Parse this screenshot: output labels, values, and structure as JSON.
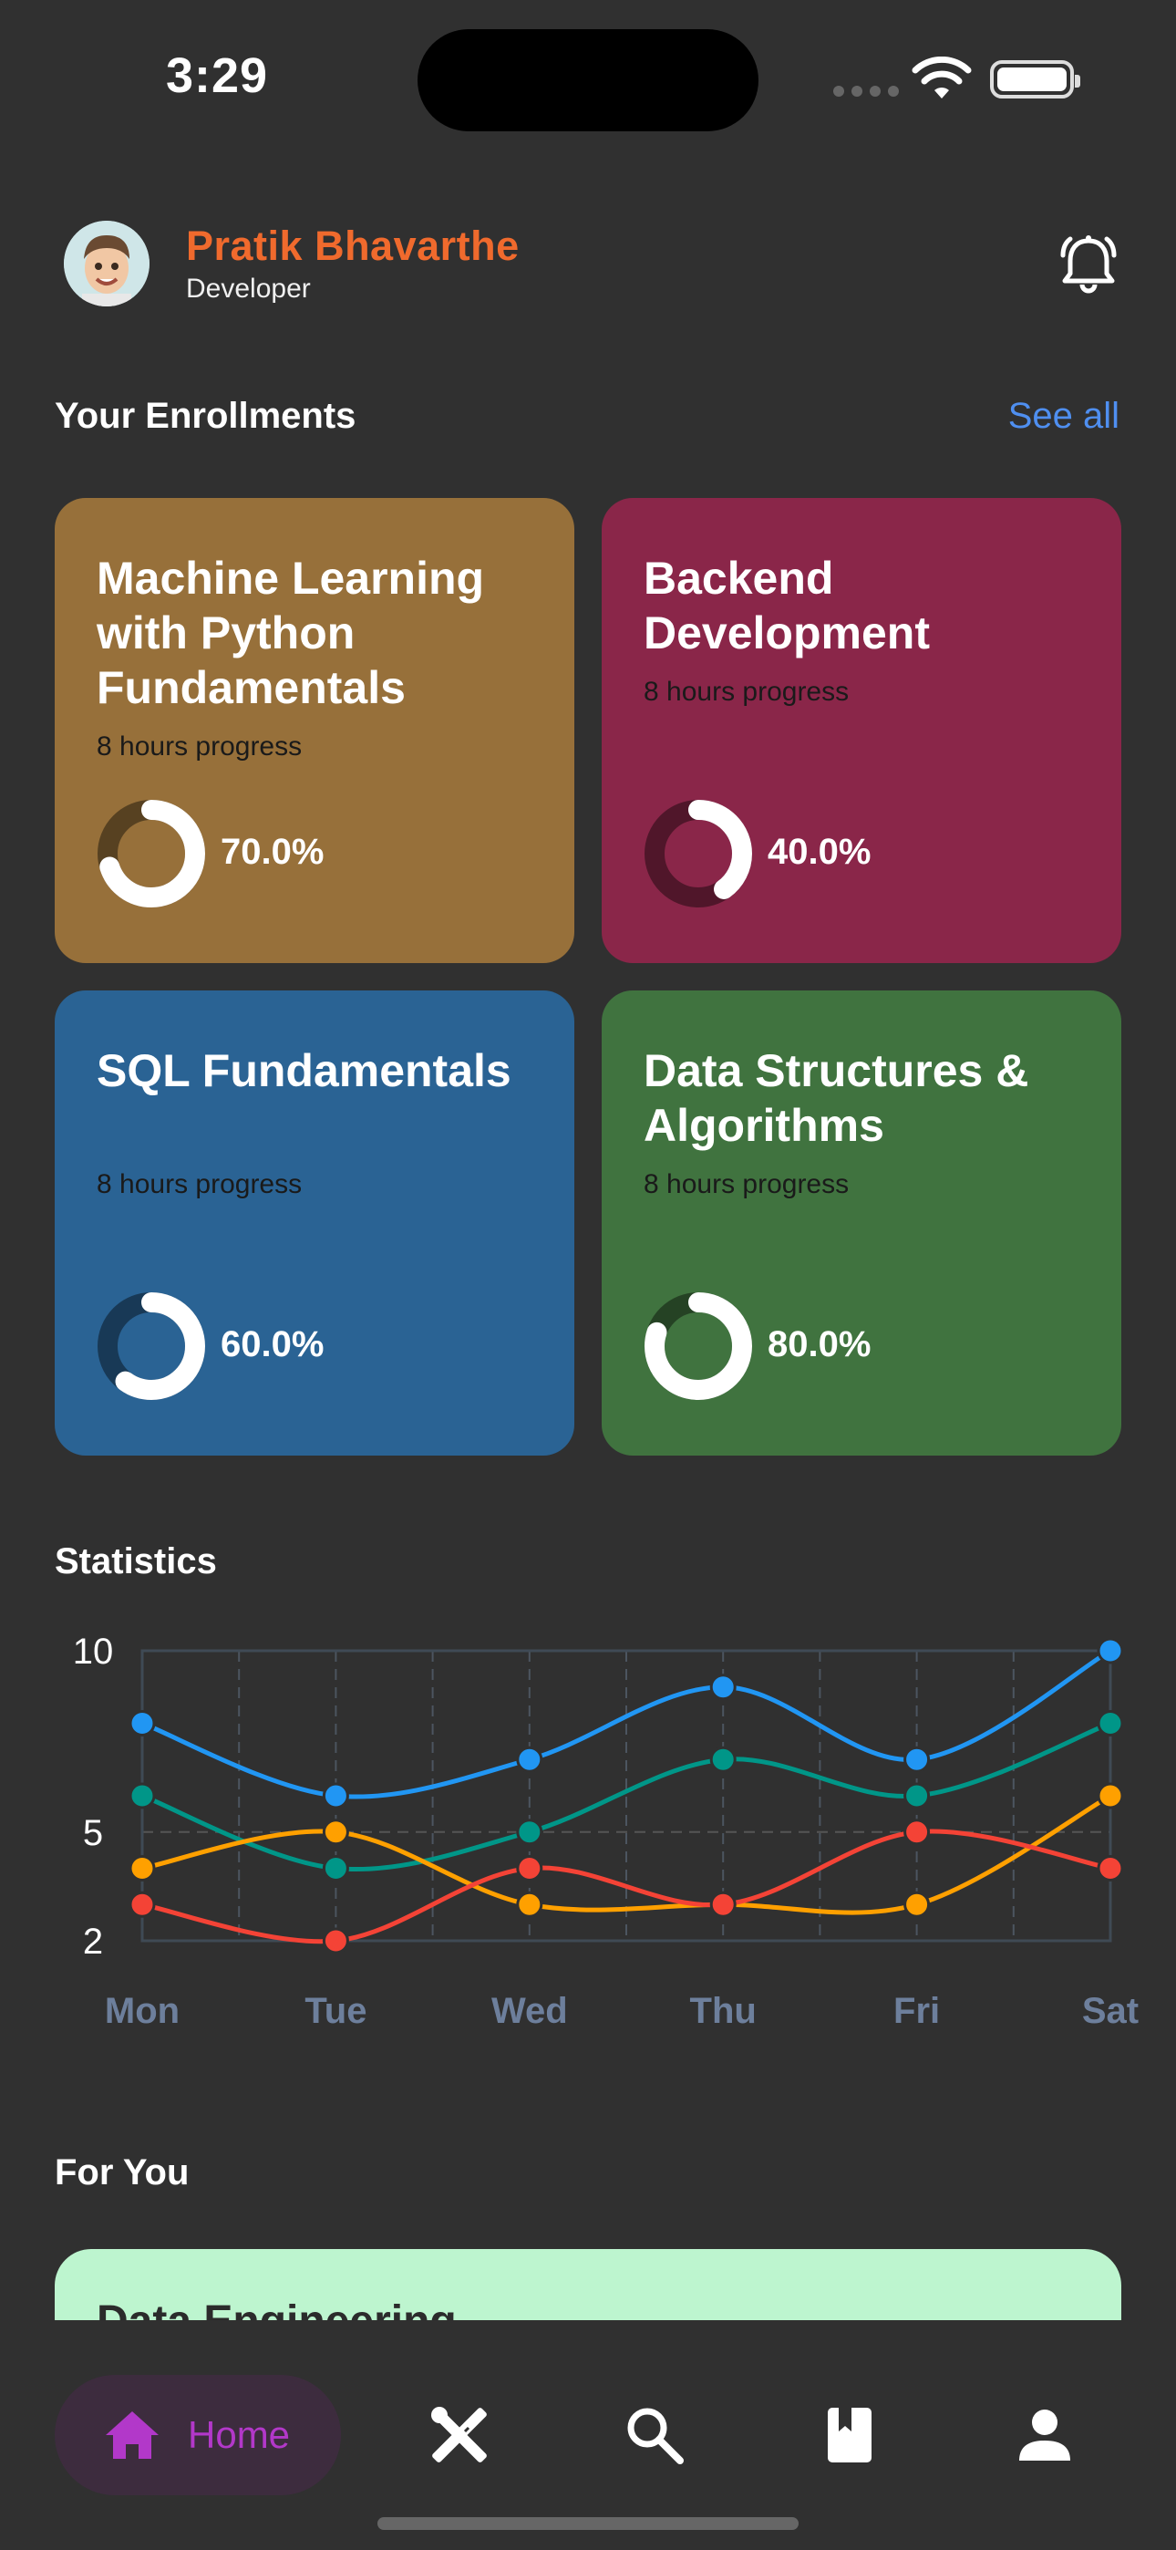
{
  "status_bar": {
    "time": "3:29"
  },
  "header": {
    "user_name": "Pratik Bhavarthe",
    "user_role": "Developer"
  },
  "enrollments": {
    "title": "Your Enrollments",
    "see_all": "See all",
    "courses": [
      {
        "title": "Machine Learning with Python Fundamentals",
        "progress_label": "8 hours progress",
        "percent_label": "70.0%",
        "progress": 0.7,
        "color": "#97703a"
      },
      {
        "title": "Backend Development",
        "progress_label": "8 hours progress",
        "percent_label": "40.0%",
        "progress": 0.4,
        "color": "#8a2649"
      },
      {
        "title": "SQL Fundamentals",
        "progress_label": "8 hours progress",
        "percent_label": "60.0%",
        "progress": 0.6,
        "color": "#2a6394"
      },
      {
        "title": "Data Structures & Algorithms",
        "progress_label": "8 hours progress",
        "percent_label": "80.0%",
        "progress": 0.8,
        "color": "#40733f"
      }
    ]
  },
  "statistics": {
    "title": "Statistics"
  },
  "chart_data": {
    "type": "line",
    "categories": [
      "Mon",
      "Tue",
      "Wed",
      "Thu",
      "Fri",
      "Sat"
    ],
    "y_ticks": [
      "2",
      "5",
      "10"
    ],
    "ylim": [
      2,
      10
    ],
    "grid": true,
    "series": [
      {
        "color": "#2196f3",
        "values": [
          8,
          6,
          7,
          9,
          7,
          10
        ]
      },
      {
        "color": "#009688",
        "values": [
          6,
          4,
          5,
          7,
          6,
          8
        ]
      },
      {
        "color": "#ffa000",
        "values": [
          4,
          5,
          3,
          3,
          3,
          6
        ]
      },
      {
        "color": "#f44336",
        "values": [
          3,
          2,
          4,
          3,
          5,
          4
        ]
      }
    ]
  },
  "for_you": {
    "title": "For You",
    "cards": [
      {
        "title": "Data Engineering"
      }
    ]
  },
  "bottom_nav": {
    "home_label": "Home",
    "active_color": "#b238c9",
    "icons": [
      "home-icon",
      "tools-icon",
      "search-icon",
      "book-icon",
      "person-icon"
    ]
  }
}
